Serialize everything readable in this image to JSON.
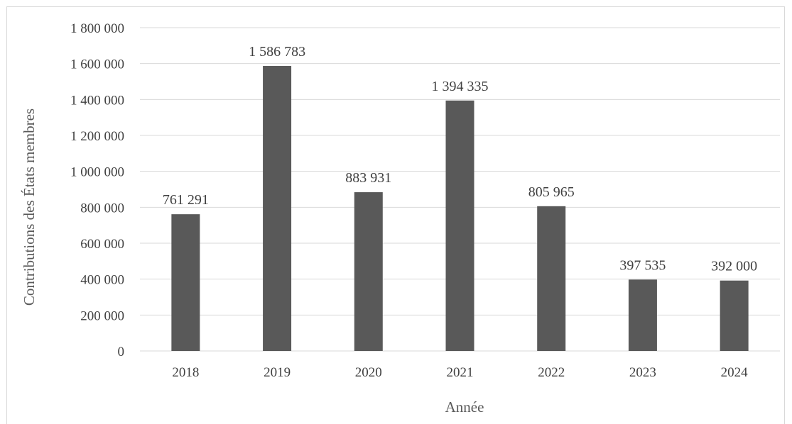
{
  "chart_data": {
    "type": "bar",
    "title": "",
    "xlabel": "Année",
    "ylabel": "Contributions des États membres",
    "categories": [
      "2018",
      "2019",
      "2020",
      "2021",
      "2022",
      "2023",
      "2024"
    ],
    "values": [
      761291,
      1586783,
      883931,
      1394335,
      805965,
      397535,
      392000
    ],
    "value_labels": [
      "761 291",
      "1 586 783",
      "883 931",
      "1 394 335",
      "805 965",
      "397 535",
      "392 000"
    ],
    "ylim": [
      0,
      1800000
    ],
    "y_ticks": [
      0,
      200000,
      400000,
      600000,
      800000,
      1000000,
      1200000,
      1400000,
      1600000,
      1800000
    ],
    "y_tick_labels": [
      "0",
      "200 000",
      "400 000",
      "600 000",
      "800 000",
      "1 000 000",
      "1 200 000",
      "1 400 000",
      "1 600 000",
      "1 800 000"
    ],
    "grid": true,
    "legend": "none",
    "bar_color": "#595959",
    "grid_color": "#d9d9d9"
  }
}
